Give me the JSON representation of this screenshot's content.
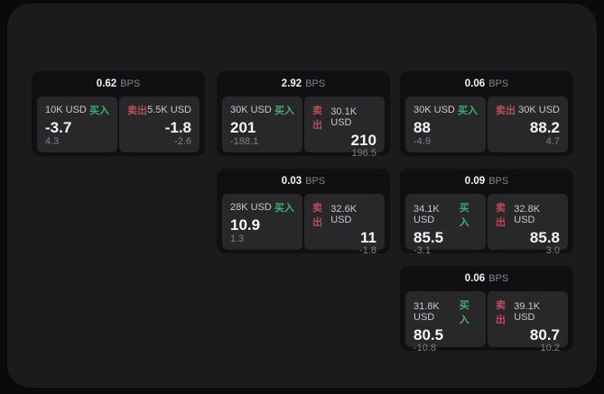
{
  "labels": {
    "buy": "买入",
    "sell": "卖出",
    "bps_unit": "BPS"
  },
  "colors": {
    "buy_green": "#3fae6b",
    "sell_red": "#bf4a57",
    "panel_bg": "#28282b",
    "card_bg": "#101012",
    "app_bg": "#1b1b1d",
    "page_bg": "#0a0a0a",
    "big_value_text": "#f6f6f8",
    "muted_text": "#808085"
  },
  "cards": [
    {
      "bps": "0.62",
      "buy": {
        "amount": "10K USD",
        "price": "-3.7",
        "delta": "4.3"
      },
      "sell": {
        "amount": "5.5K USD",
        "price": "-1.8",
        "delta": "-2.6"
      }
    },
    {
      "bps": "2.92",
      "buy": {
        "amount": "30K USD",
        "price": "201",
        "delta": "-188.1"
      },
      "sell": {
        "amount": "30.1K USD",
        "price": "210",
        "delta": "196.5"
      }
    },
    {
      "bps": "0.06",
      "buy": {
        "amount": "30K USD",
        "price": "88",
        "delta": "-4.9"
      },
      "sell": {
        "amount": "30K USD",
        "price": "88.2",
        "delta": "4.7"
      }
    },
    {
      "bps": "0.03",
      "buy": {
        "amount": "28K USD",
        "price": "10.9",
        "delta": "1.3"
      },
      "sell": {
        "amount": "32.6K USD",
        "price": "11",
        "delta": "-1.8"
      }
    },
    {
      "bps": "0.09",
      "buy": {
        "amount": "34.1K USD",
        "price": "85.5",
        "delta": "-3.1"
      },
      "sell": {
        "amount": "32.8K USD",
        "price": "85.8",
        "delta": "3.0"
      }
    },
    {
      "bps": "0.06",
      "buy": {
        "amount": "31.8K USD",
        "price": "80.5",
        "delta": "-10.8"
      },
      "sell": {
        "amount": "39.1K USD",
        "price": "80.7",
        "delta": "10.2"
      }
    }
  ]
}
